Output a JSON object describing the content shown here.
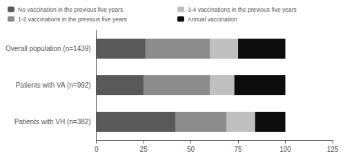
{
  "chart_data": {
    "type": "bar",
    "orientation": "horizontal",
    "stacked": true,
    "categories": [
      "Overall population (n=1439)",
      "Patients with VA (n=992)",
      "Patients with VH (n=382)"
    ],
    "series": [
      {
        "name": "No vaccination in the previous five years",
        "color": "#595959",
        "values": [
          26,
          25,
          42
        ]
      },
      {
        "name": "1-2 vaccinations in the previous five years",
        "color": "#8c8c8c",
        "values": [
          34,
          35,
          27
        ]
      },
      {
        "name": "3-4 vaccinations in the previous five years",
        "color": "#bfbfbf",
        "values": [
          15,
          13,
          15
        ]
      },
      {
        "name": "Annual vaccination",
        "color": "#0d0d0d",
        "values": [
          25,
          27,
          16
        ]
      }
    ],
    "xlim": [
      0,
      125
    ],
    "xticks": [
      0,
      25,
      50,
      75,
      100,
      125
    ],
    "grid": false,
    "legend": "top"
  }
}
